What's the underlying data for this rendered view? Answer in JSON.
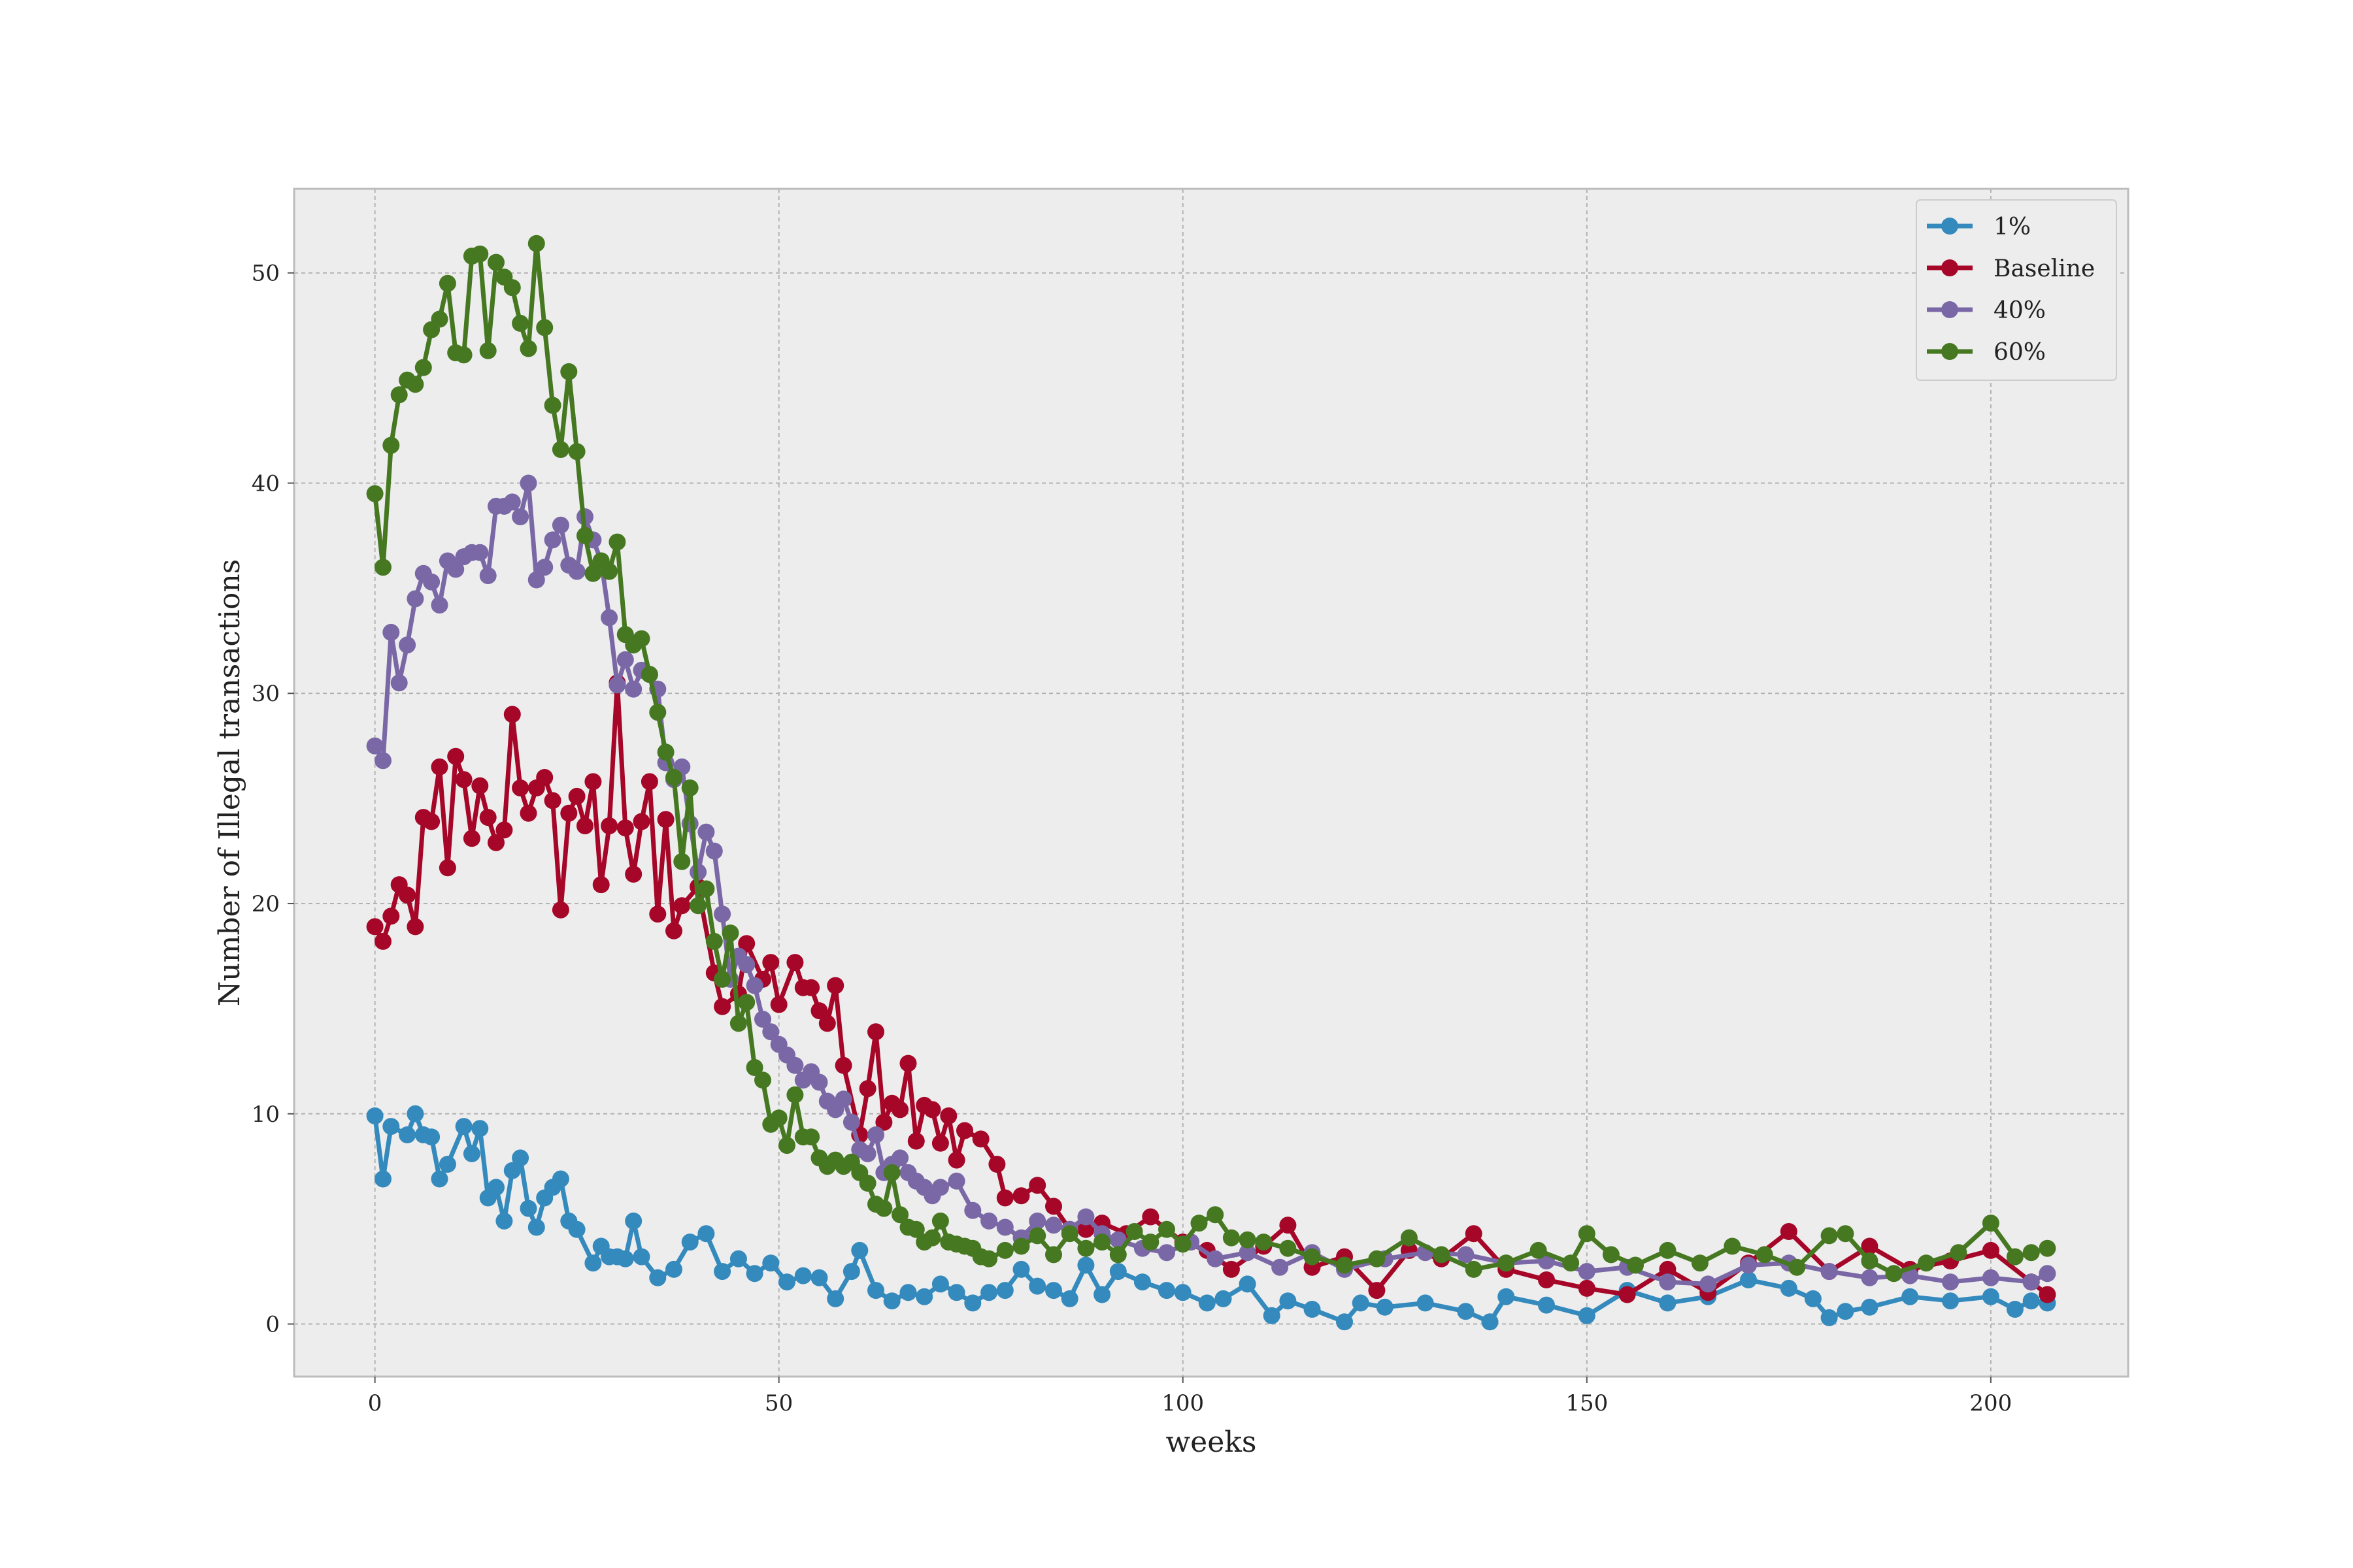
{
  "chart_data": {
    "type": "line",
    "title": "",
    "xlabel": "weeks",
    "ylabel": "Number of Illegal transactions",
    "xlim": [
      -10,
      217
    ],
    "ylim": [
      -2.5,
      54
    ],
    "xticks": [
      0,
      50,
      100,
      150,
      200
    ],
    "yticks": [
      0,
      10,
      20,
      30,
      40,
      50
    ],
    "grid": true,
    "legend_position": "top-right",
    "background_color": "#ededed",
    "markers": "circle",
    "series": [
      {
        "name": "1%",
        "color": "#348abd",
        "x": [
          0,
          1,
          2,
          4,
          5,
          6,
          7,
          8,
          9,
          11,
          12,
          13,
          14,
          15,
          16,
          17,
          18,
          19,
          20,
          21,
          22,
          23,
          24,
          25,
          27,
          28,
          29,
          30,
          31,
          32,
          33,
          35,
          37,
          39,
          41,
          43,
          45,
          47,
          49,
          51,
          53,
          55,
          57,
          59,
          60,
          62,
          64,
          66,
          68,
          70,
          72,
          74,
          76,
          78,
          80,
          82,
          84,
          86,
          88,
          90,
          92,
          95,
          98,
          100,
          103,
          105,
          108,
          111,
          113,
          116,
          120,
          122,
          125,
          130,
          135,
          138,
          140,
          145,
          150,
          155,
          160,
          165,
          170,
          175,
          178,
          180,
          182,
          185,
          190,
          195,
          200,
          203,
          205,
          207
        ],
        "y": [
          9.9,
          6.9,
          9.4,
          9.0,
          10.0,
          9.0,
          8.9,
          6.9,
          7.6,
          9.4,
          8.1,
          9.3,
          6.0,
          6.5,
          4.9,
          7.3,
          7.9,
          5.5,
          4.6,
          6.0,
          6.5,
          6.9,
          4.9,
          4.5,
          2.9,
          3.7,
          3.2,
          3.2,
          3.1,
          4.9,
          3.2,
          2.2,
          2.6,
          3.9,
          4.3,
          2.5,
          3.1,
          2.4,
          2.9,
          2.0,
          2.3,
          2.2,
          1.2,
          2.5,
          3.5,
          1.6,
          1.1,
          1.5,
          1.3,
          1.9,
          1.5,
          1.0,
          1.5,
          1.6,
          2.6,
          1.8,
          1.6,
          1.2,
          2.8,
          1.4,
          2.5,
          2.0,
          1.6,
          1.5,
          1.0,
          1.2,
          1.9,
          0.4,
          1.1,
          0.7,
          0.1,
          1.0,
          0.8,
          1.0,
          0.6,
          0.1,
          1.3,
          0.9,
          0.4,
          1.6,
          1.0,
          1.3,
          2.1,
          1.7,
          1.2,
          0.3,
          0.6,
          0.8,
          1.3,
          1.1,
          1.3,
          0.7,
          1.1,
          1.0
        ]
      },
      {
        "name": "Baseline",
        "color": "#a60628",
        "x": [
          0,
          1,
          2,
          3,
          4,
          5,
          6,
          7,
          8,
          9,
          10,
          11,
          12,
          13,
          14,
          15,
          16,
          17,
          18,
          19,
          20,
          21,
          22,
          23,
          24,
          25,
          26,
          27,
          28,
          29,
          30,
          31,
          32,
          33,
          34,
          35,
          36,
          37,
          38,
          40,
          42,
          43,
          45,
          46,
          48,
          49,
          50,
          52,
          53,
          54,
          55,
          56,
          57,
          58,
          60,
          61,
          62,
          63,
          64,
          65,
          66,
          67,
          68,
          69,
          70,
          71,
          72,
          73,
          75,
          77,
          78,
          80,
          82,
          84,
          86,
          88,
          90,
          93,
          96,
          100,
          103,
          106,
          110,
          113,
          116,
          120,
          124,
          128,
          132,
          136,
          140,
          145,
          150,
          155,
          160,
          165,
          170,
          175,
          180,
          185,
          190,
          195,
          200,
          205,
          207
        ],
        "y": [
          18.9,
          18.2,
          19.4,
          20.9,
          20.4,
          18.9,
          24.1,
          23.9,
          26.5,
          21.7,
          27.0,
          25.9,
          23.1,
          25.6,
          24.1,
          22.9,
          23.5,
          29.0,
          25.5,
          24.3,
          25.5,
          26.0,
          24.9,
          19.7,
          24.3,
          25.1,
          23.7,
          25.8,
          20.9,
          23.7,
          30.5,
          23.6,
          21.4,
          23.9,
          25.8,
          19.5,
          24.0,
          18.7,
          19.9,
          20.8,
          16.7,
          15.1,
          15.7,
          18.1,
          16.4,
          17.2,
          15.2,
          17.2,
          16.0,
          16.0,
          14.9,
          14.3,
          16.1,
          12.3,
          9.0,
          11.2,
          13.9,
          9.6,
          10.5,
          10.2,
          12.4,
          8.7,
          10.4,
          10.2,
          8.6,
          9.9,
          7.8,
          9.2,
          8.8,
          7.6,
          6.0,
          6.1,
          6.6,
          5.6,
          4.5,
          4.5,
          4.8,
          4.3,
          5.1,
          3.9,
          3.5,
          2.6,
          3.7,
          4.7,
          2.7,
          3.2,
          1.6,
          3.5,
          3.1,
          4.3,
          2.6,
          2.1,
          1.7,
          1.4,
          2.6,
          1.5,
          2.9,
          4.4,
          2.5,
          3.7,
          2.6,
          3.0,
          3.5,
          2.0,
          1.4
        ]
      },
      {
        "name": "40%",
        "color": "#7a68a6",
        "x": [
          0,
          1,
          2,
          3,
          4,
          5,
          6,
          7,
          8,
          9,
          10,
          11,
          12,
          13,
          14,
          15,
          16,
          17,
          18,
          19,
          20,
          21,
          22,
          23,
          24,
          25,
          26,
          27,
          28,
          29,
          30,
          31,
          32,
          33,
          34,
          35,
          36,
          37,
          38,
          39,
          40,
          41,
          42,
          43,
          44,
          45,
          46,
          47,
          48,
          49,
          50,
          51,
          52,
          53,
          54,
          55,
          56,
          57,
          58,
          59,
          60,
          61,
          62,
          63,
          64,
          65,
          66,
          67,
          68,
          69,
          70,
          72,
          74,
          76,
          78,
          80,
          82,
          84,
          86,
          88,
          90,
          92,
          95,
          98,
          101,
          104,
          108,
          112,
          116,
          120,
          125,
          130,
          135,
          140,
          145,
          150,
          155,
          160,
          165,
          170,
          175,
          180,
          185,
          190,
          195,
          200,
          205,
          207
        ],
        "y": [
          27.5,
          26.8,
          32.9,
          30.5,
          32.3,
          34.5,
          35.7,
          35.3,
          34.2,
          36.3,
          35.9,
          36.5,
          36.7,
          36.7,
          35.6,
          38.9,
          38.9,
          39.1,
          38.4,
          40.0,
          35.4,
          36.0,
          37.3,
          38.0,
          36.1,
          35.8,
          38.4,
          37.3,
          36.3,
          33.6,
          30.4,
          31.6,
          30.2,
          31.1,
          30.9,
          30.2,
          26.7,
          25.9,
          26.5,
          23.8,
          21.5,
          23.4,
          22.5,
          19.5,
          16.4,
          17.5,
          17.1,
          16.1,
          14.5,
          13.9,
          13.3,
          12.8,
          12.3,
          11.6,
          12.0,
          11.5,
          10.6,
          10.2,
          10.7,
          9.6,
          8.3,
          8.1,
          9.0,
          7.2,
          7.6,
          7.9,
          7.2,
          6.8,
          6.5,
          6.1,
          6.5,
          6.8,
          5.4,
          4.9,
          4.6,
          4.1,
          4.9,
          4.7,
          4.5,
          5.1,
          4.3,
          4.0,
          3.6,
          3.4,
          3.9,
          3.1,
          3.4,
          2.7,
          3.4,
          2.6,
          3.1,
          3.4,
          3.3,
          2.9,
          3.0,
          2.5,
          2.7,
          2.0,
          1.9,
          2.8,
          2.9,
          2.5,
          2.2,
          2.3,
          2.0,
          2.2,
          2.0,
          2.4
        ]
      },
      {
        "name": "60%",
        "color": "#467821",
        "x": [
          0,
          1,
          2,
          3,
          4,
          5,
          6,
          7,
          8,
          9,
          10,
          11,
          12,
          13,
          14,
          15,
          16,
          17,
          18,
          19,
          20,
          21,
          22,
          23,
          24,
          25,
          26,
          27,
          28,
          29,
          30,
          31,
          32,
          33,
          34,
          35,
          36,
          37,
          38,
          39,
          40,
          41,
          42,
          43,
          44,
          45,
          46,
          47,
          48,
          49,
          50,
          51,
          52,
          53,
          54,
          55,
          56,
          57,
          58,
          59,
          60,
          61,
          62,
          63,
          64,
          65,
          66,
          67,
          68,
          69,
          70,
          71,
          72,
          73,
          74,
          75,
          76,
          78,
          80,
          82,
          84,
          86,
          88,
          90,
          92,
          94,
          96,
          98,
          100,
          102,
          104,
          106,
          108,
          110,
          113,
          116,
          120,
          124,
          128,
          132,
          136,
          140,
          144,
          148,
          150,
          153,
          156,
          160,
          164,
          168,
          172,
          176,
          180,
          182,
          185,
          188,
          192,
          196,
          200,
          203,
          205,
          207
        ],
        "y": [
          39.5,
          36.0,
          41.8,
          44.2,
          44.9,
          44.7,
          45.5,
          47.3,
          47.8,
          49.5,
          46.2,
          46.1,
          50.8,
          50.9,
          46.3,
          50.5,
          49.8,
          49.3,
          47.6,
          46.4,
          51.4,
          47.4,
          43.7,
          41.6,
          45.3,
          41.5,
          37.5,
          35.7,
          36.3,
          35.8,
          37.2,
          32.8,
          32.3,
          32.6,
          30.9,
          29.1,
          27.2,
          26.0,
          22.0,
          25.5,
          19.9,
          20.7,
          18.2,
          16.4,
          18.6,
          14.3,
          15.3,
          12.2,
          11.6,
          9.5,
          9.8,
          8.5,
          10.9,
          8.9,
          8.9,
          7.9,
          7.5,
          7.8,
          7.5,
          7.7,
          7.2,
          6.7,
          5.7,
          5.5,
          7.2,
          5.2,
          4.6,
          4.5,
          3.9,
          4.1,
          4.9,
          3.9,
          3.8,
          3.7,
          3.6,
          3.2,
          3.1,
          3.5,
          3.7,
          4.2,
          3.3,
          4.3,
          3.6,
          3.9,
          3.3,
          4.4,
          3.9,
          4.5,
          3.8,
          4.8,
          5.2,
          4.1,
          4.0,
          3.9,
          3.6,
          3.2,
          2.8,
          3.1,
          4.1,
          3.3,
          2.6,
          2.9,
          3.5,
          2.9,
          4.3,
          3.3,
          2.8,
          3.5,
          2.9,
          3.7,
          3.3,
          2.7,
          4.2,
          4.3,
          3.0,
          2.4,
          2.9,
          3.4,
          4.8,
          3.2,
          3.4,
          3.6
        ]
      }
    ]
  }
}
